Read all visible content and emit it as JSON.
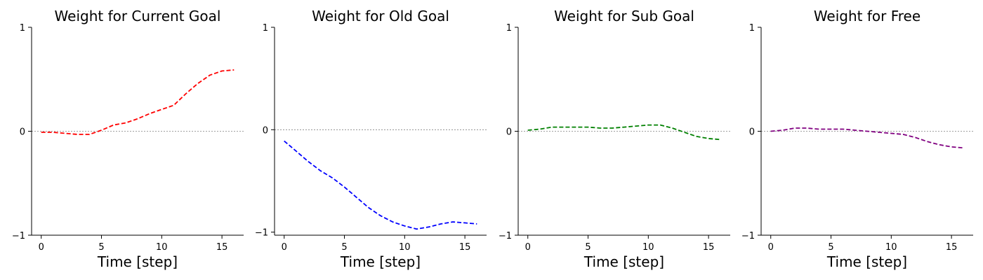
{
  "chart_data": [
    {
      "type": "line",
      "title": "Weight for Current Goal",
      "xlabel": "Time [step]",
      "ylabel": "",
      "xlim": [
        -0.8,
        16.8
      ],
      "ylim": [
        -1,
        1
      ],
      "xticks": [
        0,
        5,
        10,
        15
      ],
      "yticks": [
        -1,
        0,
        1
      ],
      "x": [
        0,
        1,
        2,
        3,
        4,
        5,
        6,
        7,
        8,
        9,
        10,
        11,
        12,
        13,
        14,
        15,
        16
      ],
      "series": [
        {
          "color": "#ff0000",
          "line_style": "dashed",
          "values": [
            -0.01,
            -0.01,
            -0.02,
            -0.03,
            -0.03,
            0.01,
            0.06,
            0.08,
            0.12,
            0.17,
            0.21,
            0.25,
            0.36,
            0.46,
            0.54,
            0.58,
            0.59
          ]
        }
      ]
    },
    {
      "type": "line",
      "title": "Weight for Old Goal",
      "xlabel": "Time [step]",
      "ylabel": "",
      "xlim": [
        -0.8,
        16.8
      ],
      "ylim": [
        -1.03,
        1
      ],
      "xticks": [
        0,
        5,
        10,
        15
      ],
      "yticks": [
        -1,
        0,
        1
      ],
      "x": [
        0,
        1,
        2,
        3,
        4,
        5,
        6,
        7,
        8,
        9,
        10,
        11,
        12,
        13,
        14,
        15,
        16
      ],
      "series": [
        {
          "color": "#0000ff",
          "line_style": "dashed",
          "values": [
            -0.11,
            -0.21,
            -0.31,
            -0.4,
            -0.47,
            -0.56,
            -0.66,
            -0.76,
            -0.84,
            -0.9,
            -0.94,
            -0.97,
            -0.95,
            -0.92,
            -0.9,
            -0.91,
            -0.92
          ]
        }
      ]
    },
    {
      "type": "line",
      "title": "Weight for Sub Goal",
      "xlabel": "Time [step]",
      "ylabel": "",
      "xlim": [
        -0.8,
        16.8
      ],
      "ylim": [
        -1,
        1
      ],
      "xticks": [
        0,
        5,
        10,
        15
      ],
      "yticks": [
        -1,
        0,
        1
      ],
      "x": [
        0,
        1,
        2,
        3,
        4,
        5,
        6,
        7,
        8,
        9,
        10,
        11,
        12,
        13,
        14,
        15,
        16
      ],
      "series": [
        {
          "color": "#008000",
          "line_style": "dashed",
          "values": [
            0.01,
            0.02,
            0.04,
            0.04,
            0.04,
            0.04,
            0.03,
            0.03,
            0.04,
            0.05,
            0.06,
            0.06,
            0.03,
            -0.01,
            -0.05,
            -0.07,
            -0.08
          ]
        }
      ]
    },
    {
      "type": "line",
      "title": "Weight for Free",
      "xlabel": "Time [step]",
      "ylabel": "",
      "xlim": [
        -0.8,
        16.8
      ],
      "ylim": [
        -1,
        1
      ],
      "xticks": [
        0,
        5,
        10,
        15
      ],
      "yticks": [
        -1,
        0,
        1
      ],
      "x": [
        0,
        1,
        2,
        3,
        4,
        5,
        6,
        7,
        8,
        9,
        10,
        11,
        12,
        13,
        14,
        15,
        16
      ],
      "series": [
        {
          "color": "#800080",
          "line_style": "dashed",
          "values": [
            0.0,
            0.01,
            0.03,
            0.03,
            0.02,
            0.02,
            0.02,
            0.01,
            0.0,
            -0.01,
            -0.02,
            -0.03,
            -0.06,
            -0.1,
            -0.13,
            -0.15,
            -0.16
          ]
        }
      ]
    }
  ],
  "style": {
    "zero_line_color": "#808080",
    "axis_color": "#000000"
  }
}
